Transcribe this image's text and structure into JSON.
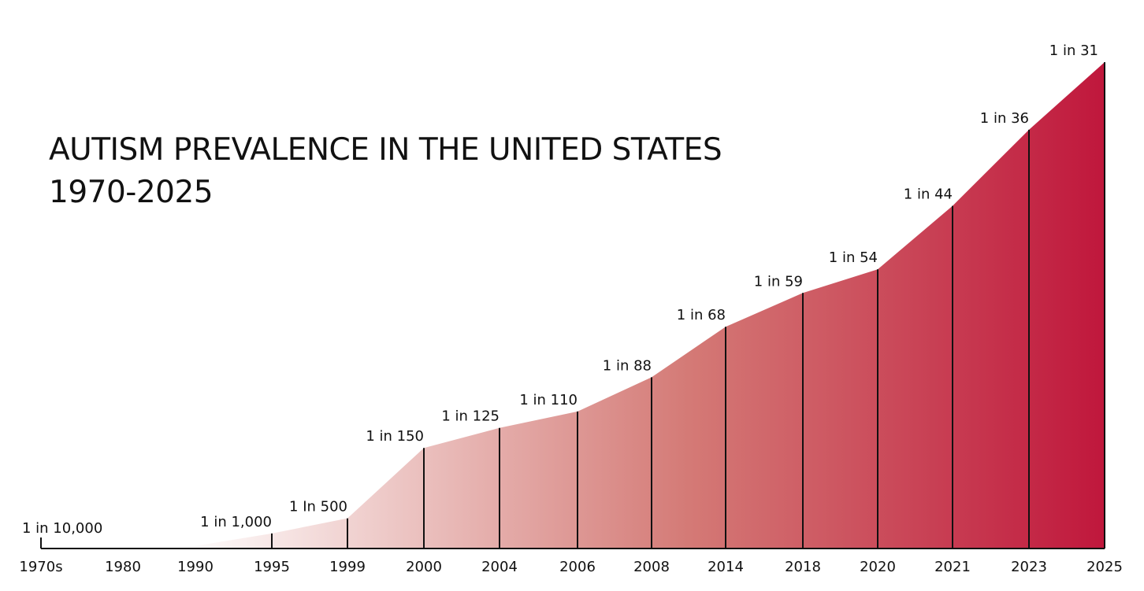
{
  "chart_data": {
    "type": "area",
    "title": "AUTISM PREVALENCE IN THE UNITED STATES",
    "subtitle": "1970-2025",
    "categories": [
      "1970s",
      "1980",
      "1990",
      "1995",
      "1999",
      "2000",
      "2004",
      "2006",
      "2008",
      "2014",
      "2018",
      "2020",
      "2021",
      "2023",
      "2025"
    ],
    "series": [
      {
        "values": [
          0.0001,
          null,
          null,
          0.001,
          0.002,
          0.00667,
          0.008,
          0.00909,
          0.01136,
          0.01471,
          0.01695,
          0.01852,
          0.02273,
          0.02778,
          0.03226
        ],
        "labels": [
          "1 in 10,000",
          "",
          "",
          "1 in 1,000",
          "1 In 500",
          "1 in 150",
          "1 in 125",
          "1 in 110",
          "1 in 88",
          "1 in 68",
          "1 in 59",
          "1 in 54",
          "1 in 44",
          "1 in 36",
          "1 in 31"
        ]
      }
    ],
    "ylim": [
      0,
      0.03226
    ],
    "grid": false,
    "legend": "none",
    "colors": {
      "fill_start": "#ffffff",
      "fill_mid": "#d47a76",
      "fill_end": "#c0173c",
      "axis": "#111111"
    }
  }
}
